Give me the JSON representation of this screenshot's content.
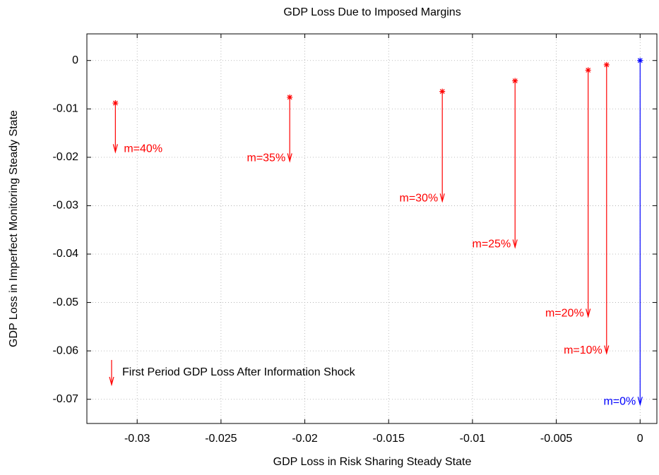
{
  "chart_data": {
    "type": "arrow-scatter",
    "title": "GDP Loss Due to Imposed Margins",
    "x_label": "GDP Loss in Risk Sharing Steady State",
    "y_label": "GDP Loss in Imperfect Monitoring Steady State",
    "legend": "First Period GDP Loss After Information Shock",
    "legend_color": "#ff0000",
    "xlim": [
      -0.033,
      0.001
    ],
    "ylim": [
      -0.075,
      0.0055
    ],
    "xticks": [
      -0.03,
      -0.025,
      -0.02,
      -0.015,
      -0.01,
      -0.005,
      0
    ],
    "yticks": [
      0,
      -0.01,
      -0.02,
      -0.03,
      -0.04,
      -0.05,
      -0.06,
      -0.07
    ],
    "grid": true,
    "points": [
      {
        "label": "m=40%",
        "x": -0.0313,
        "y": -0.0088,
        "y_end": -0.0189,
        "color": "#ff0000"
      },
      {
        "label": "m=35%",
        "x": -0.0209,
        "y": -0.0076,
        "y_end": -0.0208,
        "color": "#ff0000"
      },
      {
        "label": "m=30%",
        "x": -0.0118,
        "y": -0.0064,
        "y_end": -0.0291,
        "color": "#ff0000"
      },
      {
        "label": "m=25%",
        "x": -0.00746,
        "y": -0.0042,
        "y_end": -0.0386,
        "color": "#ff0000"
      },
      {
        "label": "m=20%",
        "x": -0.0031,
        "y": -0.002,
        "y_end": -0.0529,
        "color": "#ff0000"
      },
      {
        "label": "m=10%",
        "x": -0.002,
        "y": -0.0009,
        "y_end": -0.0605,
        "color": "#ff0000"
      },
      {
        "label": "m=0%",
        "x": 0,
        "y": 0,
        "y_end": -0.0711,
        "color": "#0000ff"
      }
    ]
  }
}
